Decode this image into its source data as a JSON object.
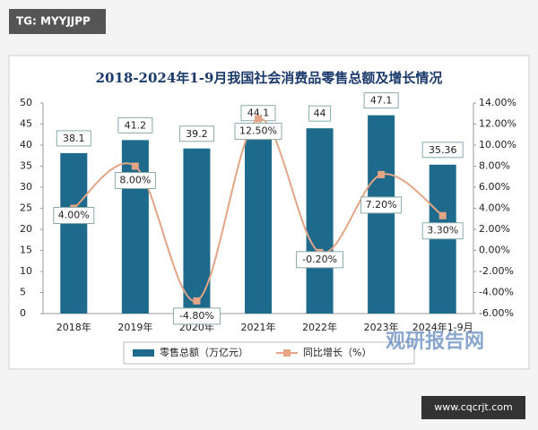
{
  "badge": "TG: MYYJJPP",
  "chart_data": {
    "type": "bar-line",
    "title": "2018-2024年1-9月我国社会消费品零售总额及增长情况",
    "categories": [
      "2018年",
      "2019年",
      "2020年",
      "2021年",
      "2022年",
      "2023年",
      "2024年1-9月"
    ],
    "series": [
      {
        "name": "零售总额（万亿元）",
        "type": "bar",
        "color": "#1e6a8d",
        "values": [
          38.1,
          41.2,
          39.2,
          44.1,
          44,
          47.1,
          35.36
        ]
      },
      {
        "name": "同比增长（%）",
        "type": "line",
        "axis": "y2",
        "color": "#e3a585",
        "values": [
          4,
          8,
          -4.8,
          12.5,
          -0.2,
          7.2,
          3.3
        ],
        "value_labels": [
          "4.00%",
          "8.00%",
          "-4.80%",
          "12.50%",
          "-0.20%",
          "7.20%",
          "3.30%"
        ]
      }
    ],
    "ylim": [
      0,
      50
    ],
    "yticks": [
      0,
      5,
      10,
      15,
      20,
      25,
      30,
      35,
      40,
      45,
      50
    ],
    "y2lim": [
      -6,
      14
    ],
    "y2ticks": [
      {
        "value": -6,
        "label": "-6.00%"
      },
      {
        "value": -4,
        "label": "-4.00%"
      },
      {
        "value": -2,
        "label": "-2.00%"
      },
      {
        "value": 0,
        "label": "0.00%"
      },
      {
        "value": 2,
        "label": "2.00%"
      },
      {
        "value": 4,
        "label": "4.00%"
      },
      {
        "value": 6,
        "label": "6.00%"
      },
      {
        "value": 8,
        "label": "8.00%"
      },
      {
        "value": 10,
        "label": "10.00%"
      },
      {
        "value": 12,
        "label": "12.00%"
      },
      {
        "value": 14,
        "label": "14.00%"
      }
    ],
    "legend": "bottom"
  },
  "watermark": {
    "brand": "观研报告网",
    "site": "www.cqcrjt.com"
  }
}
